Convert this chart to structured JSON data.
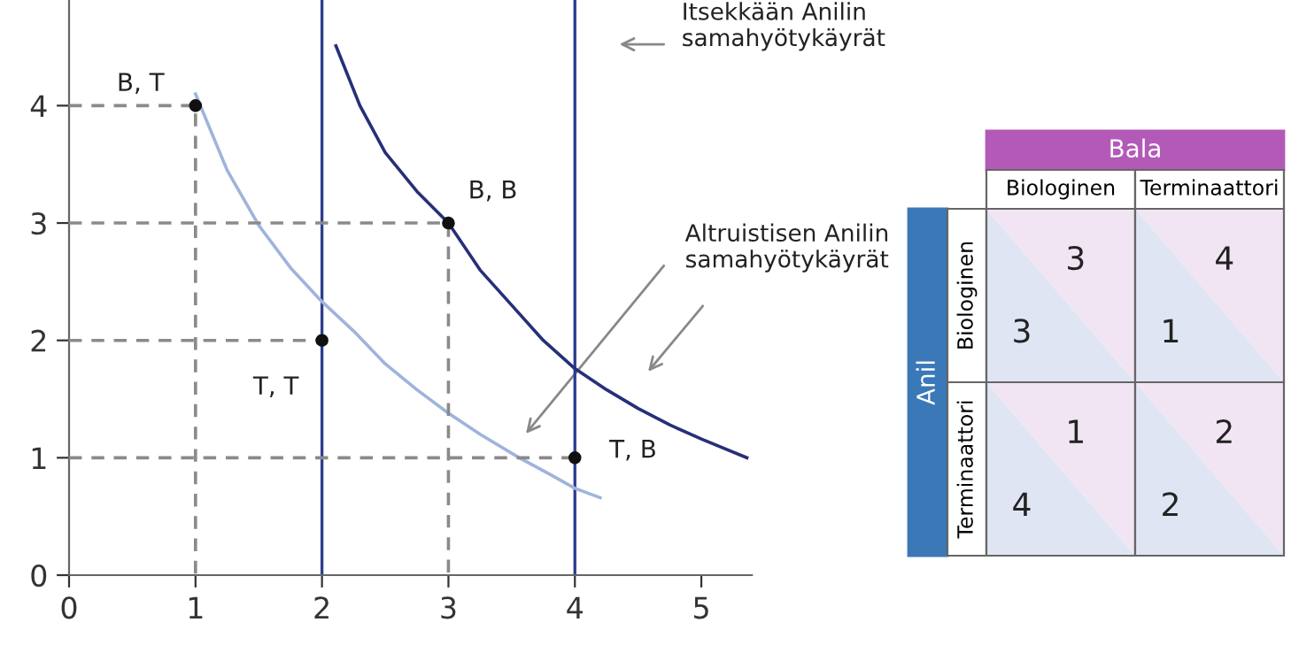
{
  "chart_data": [
    {
      "type": "line",
      "xlim": [
        0,
        5.4
      ],
      "ylim": [
        0,
        4.9
      ],
      "xticks": [
        0,
        1,
        2,
        3,
        4,
        5
      ],
      "yticks": [
        0,
        1,
        2,
        3,
        4
      ],
      "grid": false,
      "series": [
        {
          "type": "line",
          "color": "#9fb4dc",
          "line_style": "solid",
          "x": [
            1,
            1.25,
            1.5,
            1.75,
            2,
            2.25,
            2.5,
            2.75,
            3,
            3.25,
            3.56,
            3.8,
            4,
            4.2
          ],
          "values": [
            4.1,
            3.45,
            2.98,
            2.62,
            2.33,
            2.08,
            1.8,
            1.58,
            1.38,
            1.2,
            1.0,
            0.86,
            0.74,
            0.66
          ]
        },
        {
          "type": "line",
          "color": "#262f78",
          "line_style": "solid",
          "x": [
            2.11,
            2.3,
            2.5,
            2.75,
            3,
            3.25,
            3.5,
            3.75,
            4,
            4.25,
            4.5,
            4.75,
            5,
            5.36
          ],
          "values": [
            4.51,
            4.0,
            3.6,
            3.27,
            3.0,
            2.6,
            2.3,
            2.0,
            1.76,
            1.58,
            1.42,
            1.28,
            1.16,
            1.0
          ]
        },
        {
          "type": "line",
          "color": "#8a8a8a",
          "line_style": "dashed",
          "x": [
            0,
            1,
            1
          ],
          "values": [
            4,
            4,
            0
          ]
        },
        {
          "type": "line",
          "color": "#8a8a8a",
          "line_style": "dashed",
          "x": [
            0,
            2
          ],
          "values": [
            2,
            2
          ]
        },
        {
          "type": "line",
          "color": "#8a8a8a",
          "line_style": "dashed",
          "x": [
            0,
            3,
            3
          ],
          "values": [
            3,
            3,
            0
          ]
        },
        {
          "type": "line",
          "color": "#8a8a8a",
          "line_style": "dashed",
          "x": [
            0,
            4
          ],
          "values": [
            1,
            1
          ]
        },
        {
          "type": "scatter",
          "color": "#111111",
          "marker": "circle",
          "x": [
            1,
            2,
            3,
            4
          ],
          "values": [
            4,
            2,
            3,
            1
          ]
        }
      ],
      "ref_lines": [
        {
          "axis": "x",
          "value": 2,
          "color": "#2c3e8f"
        },
        {
          "axis": "x",
          "value": 4,
          "color": "#2c3e8f"
        }
      ],
      "annotations": [
        {
          "text": "B, T",
          "x": 1,
          "y": 4
        },
        {
          "text": "T, T",
          "x": 2,
          "y": 2
        },
        {
          "text": "B, B",
          "x": 3,
          "y": 3
        },
        {
          "text": "T, B",
          "x": 4,
          "y": 1
        },
        "Itsekkään Anilin\nsamahyötykäyrät",
        "Altruistisen Anilin\nsamahyötykäyrät"
      ]
    },
    {
      "type": "other",
      "xlabel": "Bala",
      "ylabel": "Anil",
      "categories": [
        "Biologinen",
        "Terminaattori"
      ],
      "y_categories": [
        "Biologinen",
        "Terminaattori"
      ],
      "cell_labels": [
        [
          [
            "3",
            "3"
          ],
          [
            "1",
            "4"
          ]
        ],
        [
          [
            "4",
            "1"
          ],
          [
            "2",
            "2"
          ]
        ]
      ]
    }
  ]
}
